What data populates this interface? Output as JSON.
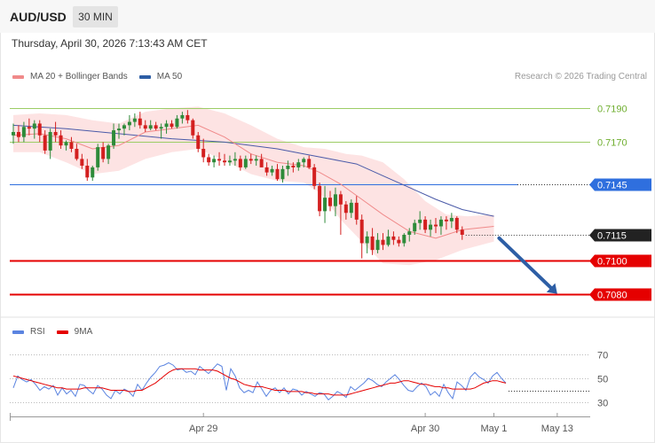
{
  "header": {
    "symbol": "AUD/USD",
    "timeframe": "30 MIN",
    "datetime": "Thursday, April 30, 2026 7:13:43 AM CET"
  },
  "legend": {
    "ma20": "MA 20 + Bollinger Bands",
    "ma50": "MA 50",
    "credit": "Research © 2026 Trading Central",
    "rsi": "RSI",
    "ma9": "9MA"
  },
  "colors": {
    "bull": "#2e8b3a",
    "bear": "#d31f1f",
    "ma20": "#f08a8a",
    "ma50": "#4a5aa8",
    "band_fill": "#fde3e3",
    "resistance": "#9ccc65",
    "pivot": "#2f6fde",
    "support": "#e50000",
    "current": "#222222",
    "arrow": "#2d5ea5",
    "rsi": "#5b84e0"
  },
  "chart_data": [
    {
      "type": "candlestick",
      "title": "AUD/USD 30 MIN",
      "ylim": [
        0.7064,
        0.7207
      ],
      "x_ticks": [
        {
          "label": "Apr 29",
          "i": 36
        },
        {
          "label": "Apr 30",
          "i": 78
        },
        {
          "label": "May 1",
          "i": 91
        },
        {
          "label": "May 13",
          "i": 103
        }
      ],
      "candles": [
        [
          0.7174,
          0.7181,
          0.7169,
          0.7176
        ],
        [
          0.7176,
          0.718,
          0.717,
          0.7173
        ],
        [
          0.7173,
          0.7182,
          0.717,
          0.7179
        ],
        [
          0.7179,
          0.7184,
          0.7174,
          0.7178
        ],
        [
          0.7178,
          0.7183,
          0.7172,
          0.7181
        ],
        [
          0.7181,
          0.7183,
          0.717,
          0.7174
        ],
        [
          0.7174,
          0.7177,
          0.7163,
          0.7165
        ],
        [
          0.7165,
          0.7178,
          0.716,
          0.7176
        ],
        [
          0.7176,
          0.7182,
          0.717,
          0.7174
        ],
        [
          0.7174,
          0.7177,
          0.7166,
          0.7168
        ],
        [
          0.7168,
          0.7171,
          0.7165,
          0.717
        ],
        [
          0.717,
          0.7173,
          0.7164,
          0.7166
        ],
        [
          0.7166,
          0.7169,
          0.7159,
          0.716
        ],
        [
          0.716,
          0.7163,
          0.7154,
          0.7156
        ],
        [
          0.7156,
          0.716,
          0.7147,
          0.7149
        ],
        [
          0.7149,
          0.7156,
          0.7147,
          0.7155
        ],
        [
          0.7155,
          0.7169,
          0.7153,
          0.7167
        ],
        [
          0.7167,
          0.717,
          0.7158,
          0.716
        ],
        [
          0.716,
          0.7169,
          0.7157,
          0.7168
        ],
        [
          0.7168,
          0.7181,
          0.7166,
          0.7177
        ],
        [
          0.7177,
          0.7181,
          0.7172,
          0.7178
        ],
        [
          0.7178,
          0.7181,
          0.7174,
          0.718
        ],
        [
          0.718,
          0.7186,
          0.7177,
          0.7182
        ],
        [
          0.7182,
          0.7187,
          0.7179,
          0.7184
        ],
        [
          0.7184,
          0.7188,
          0.7178,
          0.718
        ],
        [
          0.718,
          0.7183,
          0.7176,
          0.7178
        ],
        [
          0.7178,
          0.7183,
          0.7177,
          0.718
        ],
        [
          0.718,
          0.7182,
          0.7177,
          0.7178
        ],
        [
          0.7178,
          0.7181,
          0.7172,
          0.7179
        ],
        [
          0.7179,
          0.7183,
          0.7175,
          0.7181
        ],
        [
          0.7181,
          0.7183,
          0.7178,
          0.7179
        ],
        [
          0.7179,
          0.7186,
          0.7178,
          0.7184
        ],
        [
          0.7184,
          0.7188,
          0.7181,
          0.7186
        ],
        [
          0.7186,
          0.7189,
          0.7181,
          0.7183
        ],
        [
          0.7183,
          0.7184,
          0.7172,
          0.7174
        ],
        [
          0.7174,
          0.7176,
          0.7164,
          0.7166
        ],
        [
          0.7166,
          0.7172,
          0.7158,
          0.7161
        ],
        [
          0.7161,
          0.7163,
          0.7156,
          0.7158
        ],
        [
          0.7158,
          0.7162,
          0.7155,
          0.716
        ],
        [
          0.716,
          0.7164,
          0.7156,
          0.7159
        ],
        [
          0.7159,
          0.7163,
          0.7156,
          0.7158
        ],
        [
          0.7158,
          0.7162,
          0.7156,
          0.7159
        ],
        [
          0.7159,
          0.7164,
          0.7156,
          0.716
        ],
        [
          0.716,
          0.7162,
          0.7153,
          0.7155
        ],
        [
          0.7155,
          0.7162,
          0.7154,
          0.716
        ],
        [
          0.716,
          0.7163,
          0.7157,
          0.7159
        ],
        [
          0.7159,
          0.7162,
          0.7156,
          0.716
        ],
        [
          0.716,
          0.7163,
          0.7156,
          0.7155
        ],
        [
          0.7155,
          0.7158,
          0.715,
          0.7152
        ],
        [
          0.7152,
          0.7156,
          0.715,
          0.7154
        ],
        [
          0.7154,
          0.7157,
          0.7147,
          0.7148
        ],
        [
          0.7148,
          0.7156,
          0.7146,
          0.7154
        ],
        [
          0.7154,
          0.7159,
          0.715,
          0.7156
        ],
        [
          0.7156,
          0.7158,
          0.7152,
          0.7155
        ],
        [
          0.7155,
          0.716,
          0.7153,
          0.7158
        ],
        [
          0.7158,
          0.7161,
          0.7155,
          0.716
        ],
        [
          0.716,
          0.7162,
          0.7154,
          0.7155
        ],
        [
          0.7155,
          0.7157,
          0.7142,
          0.7144
        ],
        [
          0.7144,
          0.7146,
          0.7126,
          0.7129
        ],
        [
          0.7129,
          0.7144,
          0.7122,
          0.7137
        ],
        [
          0.7137,
          0.7141,
          0.7129,
          0.7132
        ],
        [
          0.7132,
          0.7143,
          0.7126,
          0.7139
        ],
        [
          0.7139,
          0.7141,
          0.7115,
          0.7133
        ],
        [
          0.7133,
          0.7135,
          0.7124,
          0.7128
        ],
        [
          0.7128,
          0.7136,
          0.7125,
          0.7134
        ],
        [
          0.7134,
          0.7138,
          0.7121,
          0.7124
        ],
        [
          0.7124,
          0.7127,
          0.7101,
          0.711
        ],
        [
          0.711,
          0.7117,
          0.7104,
          0.7114
        ],
        [
          0.7114,
          0.7119,
          0.7103,
          0.7106
        ],
        [
          0.7106,
          0.7116,
          0.7104,
          0.7112
        ],
        [
          0.7112,
          0.7116,
          0.7106,
          0.7109
        ],
        [
          0.7109,
          0.7118,
          0.7108,
          0.7114
        ],
        [
          0.7114,
          0.7117,
          0.7109,
          0.7112
        ],
        [
          0.7112,
          0.7114,
          0.7108,
          0.711
        ],
        [
          0.711,
          0.7116,
          0.7108,
          0.7115
        ],
        [
          0.7115,
          0.7119,
          0.7111,
          0.7117
        ],
        [
          0.7117,
          0.7124,
          0.7115,
          0.7122
        ],
        [
          0.7122,
          0.7129,
          0.7118,
          0.7124
        ],
        [
          0.7124,
          0.7126,
          0.7116,
          0.7118
        ],
        [
          0.7118,
          0.7124,
          0.7114,
          0.7121
        ],
        [
          0.7121,
          0.7125,
          0.7116,
          0.712
        ],
        [
          0.712,
          0.7126,
          0.7115,
          0.7124
        ],
        [
          0.7124,
          0.7126,
          0.7118,
          0.7123
        ],
        [
          0.7123,
          0.7128,
          0.7119,
          0.7125
        ],
        [
          0.7125,
          0.7126,
          0.7116,
          0.7118
        ],
        [
          0.7118,
          0.712,
          0.7112,
          0.7115
        ]
      ],
      "ma50": [
        [
          0,
          0.718
        ],
        [
          10,
          0.7178
        ],
        [
          20,
          0.7175
        ],
        [
          30,
          0.7172
        ],
        [
          40,
          0.717
        ],
        [
          50,
          0.7166
        ],
        [
          55,
          0.7163
        ],
        [
          60,
          0.716
        ],
        [
          65,
          0.7157
        ],
        [
          70,
          0.715
        ],
        [
          75,
          0.7143
        ],
        [
          80,
          0.7136
        ],
        [
          85,
          0.713
        ],
        [
          91,
          0.7126
        ]
      ],
      "ma20": [
        [
          0,
          0.7174
        ],
        [
          5,
          0.7175
        ],
        [
          10,
          0.7172
        ],
        [
          15,
          0.7166
        ],
        [
          20,
          0.7168
        ],
        [
          25,
          0.7176
        ],
        [
          30,
          0.7178
        ],
        [
          35,
          0.718
        ],
        [
          40,
          0.7173
        ],
        [
          45,
          0.7163
        ],
        [
          50,
          0.7158
        ],
        [
          55,
          0.7156
        ],
        [
          58,
          0.7152
        ],
        [
          62,
          0.7145
        ],
        [
          66,
          0.7136
        ],
        [
          70,
          0.7127
        ],
        [
          75,
          0.7117
        ],
        [
          80,
          0.7113
        ],
        [
          85,
          0.7118
        ],
        [
          91,
          0.712
        ]
      ],
      "band_upper": [
        [
          0,
          0.7186
        ],
        [
          5,
          0.7187
        ],
        [
          10,
          0.7186
        ],
        [
          15,
          0.7183
        ],
        [
          20,
          0.7181
        ],
        [
          25,
          0.7188
        ],
        [
          30,
          0.719
        ],
        [
          35,
          0.7191
        ],
        [
          40,
          0.7187
        ],
        [
          45,
          0.718
        ],
        [
          50,
          0.7172
        ],
        [
          55,
          0.7167
        ],
        [
          59,
          0.7166
        ],
        [
          63,
          0.7163
        ],
        [
          66,
          0.7162
        ],
        [
          70,
          0.7158
        ],
        [
          74,
          0.7148
        ],
        [
          78,
          0.7135
        ],
        [
          82,
          0.7127
        ],
        [
          86,
          0.7126
        ],
        [
          91,
          0.7127
        ]
      ],
      "band_lower": [
        [
          0,
          0.7164
        ],
        [
          5,
          0.7164
        ],
        [
          10,
          0.7158
        ],
        [
          15,
          0.7151
        ],
        [
          20,
          0.7153
        ],
        [
          25,
          0.716
        ],
        [
          30,
          0.7164
        ],
        [
          35,
          0.7166
        ],
        [
          40,
          0.7159
        ],
        [
          45,
          0.7151
        ],
        [
          50,
          0.7147
        ],
        [
          55,
          0.7146
        ],
        [
          58,
          0.714
        ],
        [
          62,
          0.7124
        ],
        [
          66,
          0.7111
        ],
        [
          70,
          0.7098
        ],
        [
          75,
          0.7097
        ],
        [
          80,
          0.71
        ],
        [
          85,
          0.7106
        ],
        [
          91,
          0.7111
        ]
      ],
      "levels": [
        {
          "label": "0.7190",
          "value": 0.719,
          "kind": "resistance"
        },
        {
          "label": "0.7170",
          "value": 0.717,
          "kind": "resistance"
        },
        {
          "label": "0.7145",
          "value": 0.7145,
          "kind": "pivot"
        },
        {
          "label": "0.7115",
          "value": 0.7115,
          "kind": "current"
        },
        {
          "label": "0.7100",
          "value": 0.71,
          "kind": "support"
        },
        {
          "label": "0.7080",
          "value": 0.708,
          "kind": "support"
        }
      ],
      "forecast_arrow": {
        "from": [
          92,
          0.7113
        ],
        "to": [
          103,
          0.708
        ]
      }
    },
    {
      "type": "line",
      "title": "RSI",
      "ylim": [
        25,
        80
      ],
      "y_ticks": [
        70,
        50,
        30
      ],
      "series": [
        {
          "name": "RSI",
          "values": [
            42,
            52,
            49,
            47,
            49,
            45,
            40,
            43,
            41,
            44,
            36,
            42,
            37,
            40,
            35,
            45,
            44,
            40,
            37,
            44,
            41,
            36,
            33,
            40,
            37,
            41,
            39,
            35,
            45,
            40,
            46,
            51,
            55,
            60,
            61,
            63,
            61,
            57,
            58,
            55,
            56,
            53,
            60,
            57,
            54,
            58,
            62,
            60,
            40,
            58,
            52,
            42,
            38,
            40,
            38,
            47,
            41,
            35,
            40,
            42,
            38,
            42,
            37,
            41,
            40,
            36,
            39,
            37,
            35,
            38,
            37,
            32,
            35,
            39,
            37,
            34,
            43,
            40,
            43,
            46,
            50,
            48,
            45,
            43,
            47,
            50,
            53,
            49,
            44,
            40,
            39,
            43,
            46,
            43,
            36,
            39,
            35,
            45,
            38,
            33,
            47,
            44,
            40,
            51,
            55,
            51,
            49,
            46,
            52,
            55,
            50,
            46
          ]
        },
        {
          "name": "9MA",
          "values": [
            52,
            51,
            50,
            49,
            48,
            47,
            46,
            45,
            44,
            43,
            42,
            42,
            41,
            41,
            41,
            41,
            42,
            42,
            42,
            42,
            42,
            41,
            40,
            40,
            40,
            40,
            39,
            39,
            40,
            40,
            42,
            44,
            46,
            49,
            52,
            55,
            57,
            58,
            58,
            58,
            58,
            58,
            57,
            57,
            57,
            57,
            56,
            54,
            52,
            50,
            49,
            47,
            45,
            44,
            43,
            43,
            43,
            42,
            41,
            40,
            40,
            40,
            39,
            39,
            39,
            39,
            38,
            38,
            37,
            37,
            37,
            37,
            36,
            36,
            36,
            36,
            37,
            38,
            39,
            40,
            41,
            42,
            43,
            44,
            45,
            46,
            46,
            47,
            48,
            48,
            47,
            46,
            45,
            45,
            44,
            43,
            43,
            42,
            42,
            41,
            41,
            41,
            41,
            41,
            42,
            44,
            46,
            47,
            48,
            48,
            47,
            46
          ]
        }
      ]
    }
  ]
}
